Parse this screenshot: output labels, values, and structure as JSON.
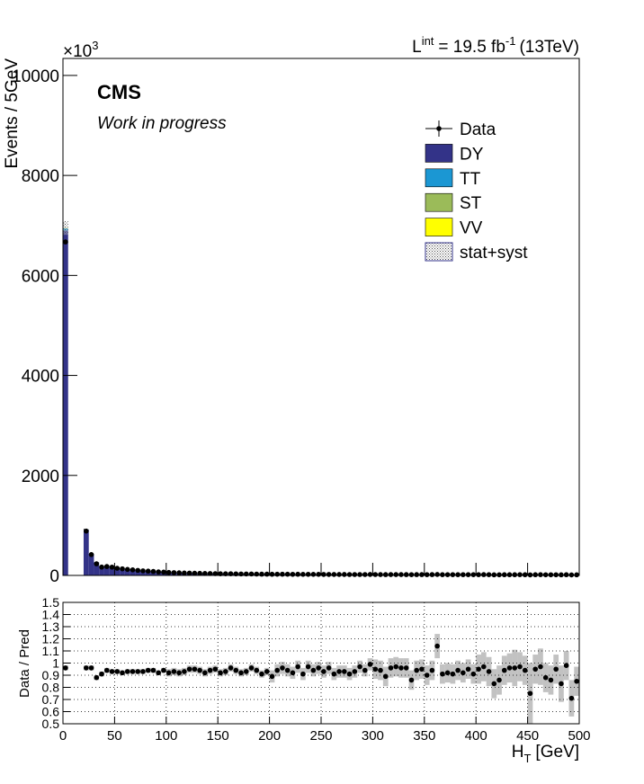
{
  "chart_data": {
    "type": "stacked-histogram-ratio",
    "lumi": {
      "symbol": "L",
      "symbol_sup": "int",
      "value": "= 19.5 fb",
      "value_sup": "-1",
      "energy": "(13TeV)"
    },
    "experiment": "CMS",
    "status": "Work in progress",
    "ylabel": "Events / 5GeV",
    "exponent": {
      "base": "×10",
      "power": "3"
    },
    "xlabel": {
      "main": "H",
      "sub": "T",
      "unit": "[GeV]"
    },
    "ratio_ylabel": "Data / Pred",
    "bins": [
      0,
      5,
      10,
      15,
      20,
      25,
      30,
      35,
      40,
      45,
      50,
      55,
      60,
      65,
      70,
      75,
      80,
      85,
      90,
      95,
      100,
      105,
      110,
      115,
      120,
      125,
      130,
      135,
      140,
      145,
      150,
      155,
      160,
      165,
      170,
      175,
      180,
      185,
      190,
      195,
      200,
      205,
      210,
      215,
      220,
      225,
      230,
      235,
      240,
      245,
      250,
      255,
      260,
      265,
      270,
      275,
      280,
      285,
      290,
      295,
      300,
      305,
      310,
      315,
      320,
      325,
      330,
      335,
      340,
      345,
      350,
      355,
      360,
      365,
      370,
      375,
      380,
      385,
      390,
      395,
      400,
      405,
      410,
      415,
      420,
      425,
      430,
      435,
      440,
      445,
      450,
      455,
      460,
      465,
      470,
      475,
      480,
      485,
      490,
      495,
      500
    ],
    "xlim": [
      0,
      500
    ],
    "xticks": [
      0,
      50,
      100,
      150,
      200,
      250,
      300,
      350,
      400,
      450,
      500
    ],
    "ylim": [
      0,
      10340
    ],
    "yticks": [
      0,
      2000,
      4000,
      6000,
      8000,
      10000
    ],
    "ratio_ylim": [
      0.5,
      1.5
    ],
    "ratio_yticks": [
      0.5,
      0.6,
      0.7,
      0.8,
      0.9,
      1,
      1.1,
      1.2,
      1.3,
      1.4,
      1.5
    ],
    "series": [
      {
        "name": "DY",
        "color": "#333388",
        "values": [
          6900,
          0,
          0,
          0,
          920,
          430,
          260,
          180,
          185,
          175,
          150,
          140,
          125,
          115,
          105,
          95,
          88,
          80,
          72,
          66,
          60,
          56,
          52,
          48,
          45,
          42,
          40,
          38,
          36,
          34,
          32,
          31,
          30,
          29,
          28,
          27,
          26,
          25,
          24,
          23,
          22,
          22,
          21,
          21,
          20,
          20,
          19,
          19,
          18,
          18,
          17,
          17,
          17,
          16,
          16,
          16,
          15,
          15,
          15,
          15,
          15,
          14,
          14,
          14,
          14,
          14,
          13,
          13,
          13,
          13,
          13,
          13,
          13,
          12,
          12,
          12,
          12,
          12,
          12,
          12,
          12,
          12,
          12,
          11,
          11,
          11,
          11,
          11,
          11,
          11,
          11,
          11,
          11,
          11,
          11,
          10,
          10,
          10,
          10,
          10
        ]
      },
      {
        "name": "TT",
        "color": "#1b97d3",
        "values": [
          40,
          0,
          0,
          0,
          2,
          2,
          2,
          2,
          2,
          2,
          2,
          2,
          2,
          2,
          2,
          2,
          2,
          2,
          2,
          2,
          2,
          2,
          2,
          2,
          2,
          2,
          2,
          2,
          2,
          2,
          2,
          2,
          2,
          2,
          2,
          2,
          2,
          2,
          2,
          2,
          2,
          2,
          2,
          2,
          2,
          2,
          2,
          2,
          2,
          2,
          2,
          2,
          2,
          2,
          2,
          2,
          2,
          2,
          2,
          2,
          2,
          2,
          2,
          2,
          2,
          2,
          2,
          2,
          2,
          2,
          2,
          2,
          2,
          2,
          2,
          2,
          2,
          2,
          2,
          2,
          2,
          2,
          2,
          2,
          2,
          2,
          2,
          2,
          2,
          2,
          2,
          2,
          2,
          2,
          2,
          2,
          2,
          2,
          2,
          2
        ]
      },
      {
        "name": "ST",
        "color": "#9bbb59",
        "values": [
          5,
          0,
          0,
          0,
          1,
          1,
          1,
          1,
          1,
          1,
          1,
          1,
          1,
          1,
          1,
          1,
          1,
          1,
          1,
          1,
          1,
          1,
          1,
          1,
          1,
          1,
          1,
          1,
          1,
          1,
          1,
          1,
          1,
          1,
          1,
          1,
          1,
          1,
          1,
          1,
          1,
          1,
          1,
          1,
          1,
          1,
          1,
          1,
          1,
          1,
          1,
          1,
          1,
          1,
          1,
          1,
          1,
          1,
          1,
          1,
          1,
          1,
          1,
          1,
          1,
          1,
          1,
          1,
          1,
          1,
          1,
          1,
          1,
          1,
          1,
          1,
          1,
          1,
          1,
          1,
          1,
          1,
          1,
          1,
          1,
          1,
          1,
          1,
          1,
          1,
          1,
          1,
          1,
          1,
          1,
          1,
          1,
          1,
          1,
          1
        ]
      },
      {
        "name": "VV",
        "color": "#ffff00",
        "values": [
          5,
          0,
          0,
          0,
          1,
          1,
          1,
          1,
          1,
          1,
          1,
          1,
          1,
          1,
          1,
          1,
          1,
          1,
          1,
          1,
          1,
          1,
          1,
          1,
          1,
          1,
          1,
          1,
          1,
          1,
          1,
          1,
          1,
          1,
          1,
          1,
          1,
          1,
          1,
          1,
          1,
          1,
          1,
          1,
          1,
          1,
          1,
          1,
          1,
          1,
          1,
          1,
          1,
          1,
          1,
          1,
          1,
          1,
          1,
          1,
          1,
          1,
          1,
          1,
          1,
          1,
          1,
          1,
          1,
          1,
          1,
          1,
          1,
          1,
          1,
          1,
          1,
          1,
          1,
          1,
          1,
          1,
          1,
          1,
          1,
          1,
          1,
          1,
          1,
          1,
          1,
          1,
          1,
          1,
          1,
          1,
          1,
          1,
          1,
          1
        ]
      }
    ],
    "data": {
      "name": "Data",
      "color": "#000000",
      "values": [
        6670,
        null,
        null,
        null,
        887,
        417,
        232,
        167,
        178,
        166,
        143,
        132,
        120,
        111,
        101,
        92,
        86,
        79,
        70,
        66,
        59,
        56,
        52,
        48,
        47,
        44,
        41,
        39,
        38,
        36,
        33,
        33,
        33,
        31,
        29,
        29,
        29,
        27,
        25,
        25,
        23,
        24,
        24,
        24,
        22,
        23,
        21,
        22,
        21,
        21,
        20,
        20,
        19,
        19,
        19,
        18,
        18,
        18,
        18,
        19,
        18,
        17,
        16,
        17,
        17,
        17,
        16,
        15,
        16,
        16,
        15,
        16,
        19,
        15,
        15,
        15,
        15,
        15,
        15,
        15,
        15,
        16,
        15,
        12,
        13,
        14,
        14,
        14,
        15,
        14,
        11,
        14,
        15,
        13,
        13,
        13,
        12,
        14,
        10,
        12
      ]
    },
    "uncertainty": {
      "name": "stat+syst",
      "values": [
        0.02,
        null,
        null,
        null,
        0.02,
        0.02,
        0.02,
        0.02,
        0.02,
        0.02,
        0.02,
        0.02,
        0.02,
        0.02,
        0.02,
        0.02,
        0.02,
        0.02,
        0.02,
        0.02,
        0.03,
        0.03,
        0.03,
        0.03,
        0.03,
        0.03,
        0.03,
        0.03,
        0.03,
        0.03,
        0.03,
        0.03,
        0.03,
        0.03,
        0.03,
        0.03,
        0.03,
        0.03,
        0.03,
        0.03,
        0.05,
        0.05,
        0.05,
        0.05,
        0.05,
        0.05,
        0.05,
        0.05,
        0.05,
        0.05,
        0.05,
        0.05,
        0.05,
        0.05,
        0.05,
        0.05,
        0.05,
        0.05,
        0.05,
        0.05,
        0.08,
        0.08,
        0.08,
        0.08,
        0.08,
        0.08,
        0.08,
        0.08,
        0.08,
        0.08,
        0.08,
        0.08,
        0.1,
        0.08,
        0.08,
        0.08,
        0.08,
        0.08,
        0.08,
        0.08,
        0.12,
        0.12,
        0.12,
        0.12,
        0.12,
        0.12,
        0.12,
        0.15,
        0.12,
        0.12,
        0.25,
        0.12,
        0.15,
        0.12,
        0.12,
        0.12,
        0.15,
        0.12,
        0.15,
        0.12
      ]
    },
    "ratio": [
      0.96,
      null,
      null,
      null,
      0.96,
      0.96,
      0.88,
      0.91,
      0.94,
      0.93,
      0.93,
      0.92,
      0.93,
      0.93,
      0.93,
      0.93,
      0.94,
      0.94,
      0.92,
      0.94,
      0.92,
      0.93,
      0.92,
      0.93,
      0.95,
      0.95,
      0.94,
      0.92,
      0.94,
      0.95,
      0.92,
      0.93,
      0.96,
      0.94,
      0.92,
      0.93,
      0.96,
      0.94,
      0.91,
      0.93,
      0.89,
      0.94,
      0.96,
      0.94,
      0.92,
      0.97,
      0.91,
      0.97,
      0.94,
      0.96,
      0.93,
      0.96,
      0.91,
      0.93,
      0.93,
      0.91,
      0.93,
      0.97,
      0.94,
      0.99,
      0.95,
      0.94,
      0.89,
      0.96,
      0.97,
      0.96,
      0.96,
      0.86,
      0.94,
      0.95,
      0.9,
      0.94,
      1.14,
      0.91,
      0.92,
      0.91,
      0.94,
      0.92,
      0.95,
      0.91,
      0.95,
      0.97,
      0.93,
      0.83,
      0.86,
      0.94,
      0.96,
      0.96,
      0.97,
      0.94,
      0.75,
      0.95,
      0.97,
      0.88,
      0.86,
      0.95,
      0.83,
      0.98,
      0.71,
      0.85
    ]
  }
}
